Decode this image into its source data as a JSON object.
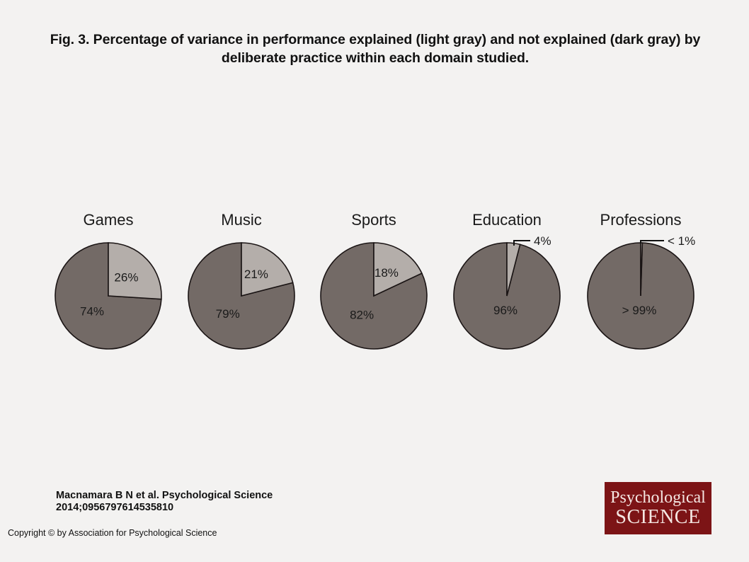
{
  "title": "Fig. 3. Percentage of variance in performance explained (light gray) and not explained (dark gray) by deliberate practice within each domain studied.",
  "colors": {
    "explained": "#b4aeaa",
    "not_explained": "#736a66",
    "stroke": "#1a1414",
    "logo_bg": "#7c1416"
  },
  "chart_data": {
    "type": "pie",
    "title": "Percentage of variance in performance explained (light gray) and not explained (dark gray) by deliberate practice within each domain studied.",
    "series_names": [
      "Explained",
      "Not explained"
    ],
    "pies": [
      {
        "name": "Games",
        "explained": 26,
        "not_explained": 74,
        "explained_label": "26%",
        "not_explained_label": "74%"
      },
      {
        "name": "Music",
        "explained": 21,
        "not_explained": 79,
        "explained_label": "21%",
        "not_explained_label": "79%"
      },
      {
        "name": "Sports",
        "explained": 18,
        "not_explained": 82,
        "explained_label": "18%",
        "not_explained_label": "82%"
      },
      {
        "name": "Education",
        "explained": 4,
        "not_explained": 96,
        "explained_label": "4%",
        "not_explained_label": "96%"
      },
      {
        "name": "Professions",
        "explained": 0.5,
        "not_explained": 99.5,
        "explained_label": "< 1%",
        "not_explained_label": "> 99%"
      }
    ]
  },
  "citation": {
    "line1": "Macnamara B N et al. Psychological Science",
    "line2": "2014;0956797614535810"
  },
  "copyright": "Copyright © by Association for Psychological Science",
  "logo": {
    "line1": "Psychological",
    "line2": "SCIENCE"
  }
}
